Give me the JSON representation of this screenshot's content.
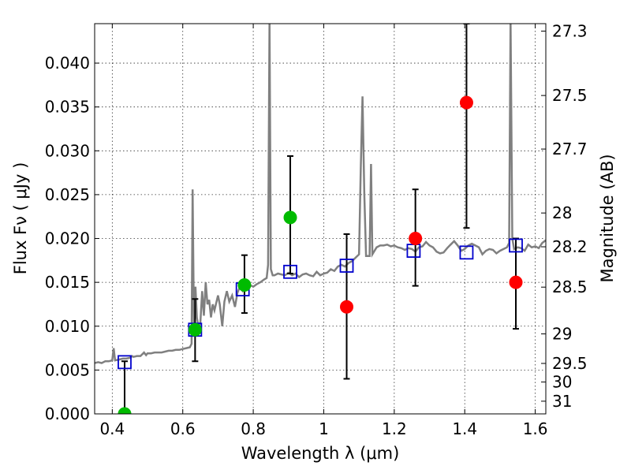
{
  "chart_data": {
    "type": "scatter",
    "xlabel": "Wavelength  λ (μm)",
    "ylabel": "Flux  Fν  ( μJy )",
    "y2label": "Magnitude (AB)",
    "xlim": [
      0.35,
      1.63
    ],
    "ylim": [
      0.0,
      0.0445
    ],
    "grid": true,
    "x_ticks": [
      {
        "value": 0.4,
        "label": "0.4"
      },
      {
        "value": 0.6,
        "label": "0.6"
      },
      {
        "value": 0.8,
        "label": "0.8"
      },
      {
        "value": 1.0,
        "label": "1"
      },
      {
        "value": 1.2,
        "label": "1.2"
      },
      {
        "value": 1.4,
        "label": "1.4"
      },
      {
        "value": 1.6,
        "label": "1.6"
      }
    ],
    "y_ticks": [
      {
        "value": 0.0,
        "label": "0.000"
      },
      {
        "value": 0.005,
        "label": "0.005"
      },
      {
        "value": 0.01,
        "label": "0.010"
      },
      {
        "value": 0.015,
        "label": "0.015"
      },
      {
        "value": 0.02,
        "label": "0.020"
      },
      {
        "value": 0.025,
        "label": "0.025"
      },
      {
        "value": 0.03,
        "label": "0.030"
      },
      {
        "value": 0.035,
        "label": "0.035"
      },
      {
        "value": 0.04,
        "label": "0.040"
      }
    ],
    "magnitude_ticks": [
      {
        "mag": 27.3,
        "label": "27.3"
      },
      {
        "mag": 27.5,
        "label": "27.5"
      },
      {
        "mag": 27.7,
        "label": "27.7"
      },
      {
        "mag": 28.0,
        "label": "28"
      },
      {
        "mag": 28.2,
        "label": "28.2"
      },
      {
        "mag": 28.5,
        "label": "28.5"
      },
      {
        "mag": 29.0,
        "label": "29"
      },
      {
        "mag": 29.5,
        "label": "29.5"
      },
      {
        "mag": 30.0,
        "label": "30"
      },
      {
        "mag": 31.0,
        "label": "31"
      }
    ],
    "model_spectrum": {
      "color": "#808080",
      "points": [
        [
          0.35,
          0.0058
        ],
        [
          0.36,
          0.0059
        ],
        [
          0.37,
          0.0058
        ],
        [
          0.38,
          0.006
        ],
        [
          0.39,
          0.006
        ],
        [
          0.4,
          0.0061
        ],
        [
          0.404,
          0.0075
        ],
        [
          0.408,
          0.0061
        ],
        [
          0.42,
          0.0062
        ],
        [
          0.43,
          0.0063
        ],
        [
          0.44,
          0.0063
        ],
        [
          0.45,
          0.0064
        ],
        [
          0.456,
          0.0066
        ],
        [
          0.46,
          0.0065
        ],
        [
          0.47,
          0.0066
        ],
        [
          0.48,
          0.0066
        ],
        [
          0.49,
          0.007
        ],
        [
          0.496,
          0.0067
        ],
        [
          0.5,
          0.0069
        ],
        [
          0.51,
          0.0069
        ],
        [
          0.52,
          0.007
        ],
        [
          0.53,
          0.007
        ],
        [
          0.54,
          0.007
        ],
        [
          0.55,
          0.0071
        ],
        [
          0.56,
          0.0072
        ],
        [
          0.57,
          0.0072
        ],
        [
          0.58,
          0.0073
        ],
        [
          0.59,
          0.0073
        ],
        [
          0.6,
          0.0074
        ],
        [
          0.61,
          0.0075
        ],
        [
          0.62,
          0.0076
        ],
        [
          0.625,
          0.008
        ],
        [
          0.628,
          0.0256
        ],
        [
          0.632,
          0.009
        ],
        [
          0.636,
          0.0145
        ],
        [
          0.64,
          0.011
        ],
        [
          0.645,
          0.0098
        ],
        [
          0.65,
          0.0105
        ],
        [
          0.655,
          0.014
        ],
        [
          0.66,
          0.0112
        ],
        [
          0.665,
          0.015
        ],
        [
          0.67,
          0.0125
        ],
        [
          0.675,
          0.013
        ],
        [
          0.68,
          0.011
        ],
        [
          0.685,
          0.0125
        ],
        [
          0.69,
          0.0118
        ],
        [
          0.7,
          0.0135
        ],
        [
          0.705,
          0.0125
        ],
        [
          0.712,
          0.01
        ],
        [
          0.718,
          0.0128
        ],
        [
          0.725,
          0.014
        ],
        [
          0.732,
          0.0128
        ],
        [
          0.74,
          0.0135
        ],
        [
          0.748,
          0.0122
        ],
        [
          0.755,
          0.0138
        ],
        [
          0.762,
          0.0145
        ],
        [
          0.77,
          0.014
        ],
        [
          0.78,
          0.0144
        ],
        [
          0.79,
          0.0147
        ],
        [
          0.8,
          0.0145
        ],
        [
          0.81,
          0.0148
        ],
        [
          0.82,
          0.015
        ],
        [
          0.83,
          0.0153
        ],
        [
          0.838,
          0.0155
        ],
        [
          0.842,
          0.017
        ],
        [
          0.846,
          0.045
        ],
        [
          0.85,
          0.0165
        ],
        [
          0.855,
          0.0158
        ],
        [
          0.86,
          0.0158
        ],
        [
          0.87,
          0.016
        ],
        [
          0.88,
          0.0159
        ],
        [
          0.89,
          0.0158
        ],
        [
          0.9,
          0.0161
        ],
        [
          0.91,
          0.0158
        ],
        [
          0.92,
          0.016
        ],
        [
          0.93,
          0.0156
        ],
        [
          0.94,
          0.0159
        ],
        [
          0.95,
          0.016
        ],
        [
          0.96,
          0.0158
        ],
        [
          0.97,
          0.0157
        ],
        [
          0.98,
          0.0162
        ],
        [
          0.99,
          0.0158
        ],
        [
          1.0,
          0.016
        ],
        [
          1.01,
          0.0161
        ],
        [
          1.02,
          0.0165
        ],
        [
          1.03,
          0.0163
        ],
        [
          1.04,
          0.0168
        ],
        [
          1.05,
          0.017
        ],
        [
          1.06,
          0.0168
        ],
        [
          1.07,
          0.0172
        ],
        [
          1.08,
          0.0174
        ],
        [
          1.09,
          0.0178
        ],
        [
          1.1,
          0.0182
        ],
        [
          1.105,
          0.028
        ],
        [
          1.11,
          0.0362
        ],
        [
          1.115,
          0.025
        ],
        [
          1.12,
          0.018
        ],
        [
          1.13,
          0.018
        ],
        [
          1.134,
          0.0285
        ],
        [
          1.138,
          0.0182
        ],
        [
          1.15,
          0.019
        ],
        [
          1.16,
          0.0192
        ],
        [
          1.17,
          0.0192
        ],
        [
          1.18,
          0.0193
        ],
        [
          1.19,
          0.0191
        ],
        [
          1.2,
          0.0192
        ],
        [
          1.21,
          0.019
        ],
        [
          1.22,
          0.0189
        ],
        [
          1.23,
          0.0187
        ],
        [
          1.24,
          0.0189
        ],
        [
          1.25,
          0.0188
        ],
        [
          1.26,
          0.0185
        ],
        [
          1.27,
          0.019
        ],
        [
          1.28,
          0.0191
        ],
        [
          1.29,
          0.0196
        ],
        [
          1.3,
          0.0192
        ],
        [
          1.31,
          0.019
        ],
        [
          1.32,
          0.0185
        ],
        [
          1.33,
          0.0183
        ],
        [
          1.34,
          0.0184
        ],
        [
          1.35,
          0.0189
        ],
        [
          1.36,
          0.0193
        ],
        [
          1.37,
          0.0197
        ],
        [
          1.38,
          0.0192
        ],
        [
          1.39,
          0.0186
        ],
        [
          1.4,
          0.0188
        ],
        [
          1.41,
          0.0192
        ],
        [
          1.42,
          0.0194
        ],
        [
          1.43,
          0.0192
        ],
        [
          1.44,
          0.019
        ],
        [
          1.45,
          0.0182
        ],
        [
          1.46,
          0.0186
        ],
        [
          1.47,
          0.0188
        ],
        [
          1.48,
          0.0187
        ],
        [
          1.49,
          0.0183
        ],
        [
          1.5,
          0.0186
        ],
        [
          1.51,
          0.0188
        ],
        [
          1.52,
          0.019
        ],
        [
          1.526,
          0.0195
        ],
        [
          1.53,
          0.045
        ],
        [
          1.535,
          0.02
        ],
        [
          1.54,
          0.0188
        ],
        [
          1.55,
          0.019
        ],
        [
          1.56,
          0.0189
        ],
        [
          1.57,
          0.0186
        ],
        [
          1.58,
          0.0193
        ],
        [
          1.59,
          0.019
        ],
        [
          1.6,
          0.0191
        ],
        [
          1.61,
          0.0189
        ],
        [
          1.62,
          0.0195
        ],
        [
          1.63,
          0.0198
        ]
      ]
    },
    "series": [
      {
        "marker": "square",
        "color": "#0000cc",
        "points": [
          {
            "x": 0.435,
            "y": 0.0059
          },
          {
            "x": 0.635,
            "y": 0.0096
          },
          {
            "x": 0.77,
            "y": 0.0142
          },
          {
            "x": 0.905,
            "y": 0.0162
          },
          {
            "x": 1.065,
            "y": 0.0169
          },
          {
            "x": 1.255,
            "y": 0.0186
          },
          {
            "x": 1.405,
            "y": 0.0184
          },
          {
            "x": 1.545,
            "y": 0.0192
          }
        ]
      },
      {
        "marker": "circle",
        "color": "#00bb00",
        "points": [
          {
            "x": 0.435,
            "y": 0.0,
            "yerr": [
              0.0,
              0.006
            ]
          },
          {
            "x": 0.635,
            "y": 0.0096,
            "yerr": [
              0.006,
              0.0131
            ]
          },
          {
            "x": 0.775,
            "y": 0.0147,
            "yerr": [
              0.0115,
              0.0181
            ]
          },
          {
            "x": 0.905,
            "y": 0.0224,
            "yerr": [
              0.016,
              0.0294
            ]
          }
        ]
      },
      {
        "marker": "circle",
        "color": "#ff0000",
        "points": [
          {
            "x": 1.065,
            "y": 0.0122,
            "yerr": [
              0.004,
              0.0205
            ]
          },
          {
            "x": 1.26,
            "y": 0.02,
            "yerr": [
              0.0146,
              0.0256
            ]
          },
          {
            "x": 1.405,
            "y": 0.0355,
            "yerr": [
              0.0212,
              0.0445
            ]
          },
          {
            "x": 1.545,
            "y": 0.015,
            "yerr": [
              0.0097,
              0.02
            ]
          }
        ]
      }
    ]
  }
}
